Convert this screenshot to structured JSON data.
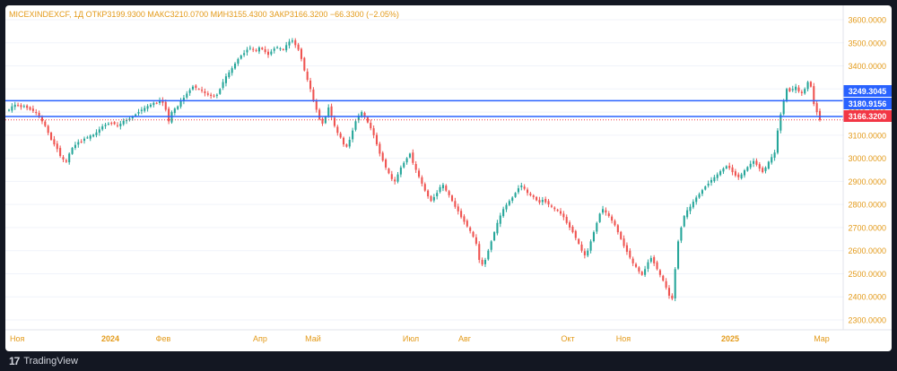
{
  "header": {
    "symbol": "MICEXINDEXCF, 1Д",
    "o_label": "ОТКР",
    "o_val": "3199.9300",
    "h_label": "МАКС",
    "h_val": "3210.0700",
    "l_label": "МИН",
    "l_val": "3155.4300",
    "c_label": "ЗАКР",
    "c_val": "3166.3200",
    "change": "−66.3300 (−2.05%)"
  },
  "footer": {
    "brand": "TradingView"
  },
  "colors": {
    "up": "#26a69a",
    "down": "#ef5350",
    "level": "#2962ff",
    "close_tag": "#f23645",
    "header_text": "#e39a19",
    "axis_text": "#e39a19"
  },
  "chart_data": {
    "type": "candlestick",
    "y_axis": {
      "min": 2300,
      "max": 3600,
      "ticks": [
        "3600.0000",
        "3500.0000",
        "3400.0000",
        "3300.0000",
        "3200.0000",
        "3100.0000",
        "3000.0000",
        "2900.0000",
        "2800.0000",
        "2700.0000",
        "2600.0000",
        "2500.0000",
        "2400.0000",
        "2300.0000"
      ]
    },
    "x_ticks": [
      "Ноя",
      "2024",
      "Фев",
      "Апр",
      "Май",
      "Июл",
      "Авг",
      "Окт",
      "Ноя",
      "2025",
      "Мар"
    ],
    "price_lines": [
      {
        "label": "3249.3045",
        "value": 3249.3045,
        "style": "solid"
      },
      {
        "label": "3180.9156",
        "value": 3180.9156,
        "style": "solid"
      },
      {
        "label": "3166.3200",
        "value": 3166.32,
        "style": "dotted"
      }
    ],
    "close_series": [
      3210,
      3225,
      3232,
      3230,
      3222,
      3226,
      3218,
      3210,
      3205,
      3200,
      3180,
      3160,
      3140,
      3110,
      3080,
      3060,
      3040,
      3010,
      2995,
      2985,
      3020,
      3045,
      3058,
      3070,
      3072,
      3085,
      3090,
      3098,
      3102,
      3112,
      3125,
      3138,
      3145,
      3150,
      3152,
      3148,
      3142,
      3150,
      3162,
      3165,
      3172,
      3180,
      3190,
      3200,
      3210,
      3218,
      3226,
      3232,
      3240,
      3238,
      3250,
      3240,
      3210,
      3160,
      3200,
      3215,
      3225,
      3248,
      3262,
      3280,
      3295,
      3310,
      3305,
      3300,
      3292,
      3282,
      3275,
      3270,
      3268,
      3275,
      3300,
      3330,
      3355,
      3372,
      3390,
      3410,
      3430,
      3445,
      3455,
      3470,
      3478,
      3472,
      3465,
      3480,
      3472,
      3460,
      3448,
      3462,
      3475,
      3480,
      3476,
      3470,
      3490,
      3505,
      3510,
      3490,
      3470,
      3430,
      3380,
      3340,
      3300,
      3250,
      3210,
      3170,
      3150,
      3180,
      3220,
      3180,
      3140,
      3110,
      3090,
      3060,
      3050,
      3080,
      3120,
      3160,
      3185,
      3200,
      3180,
      3155,
      3130,
      3100,
      3060,
      3020,
      2990,
      2960,
      2935,
      2910,
      2900,
      2930,
      2960,
      2980,
      3000,
      3020,
      2980,
      2950,
      2920,
      2890,
      2860,
      2835,
      2815,
      2832,
      2850,
      2875,
      2885,
      2860,
      2840,
      2815,
      2790,
      2770,
      2745,
      2725,
      2705,
      2685,
      2660,
      2630,
      2560,
      2540,
      2560,
      2600,
      2640,
      2680,
      2720,
      2752,
      2780,
      2798,
      2815,
      2830,
      2850,
      2870,
      2882,
      2868,
      2850,
      2840,
      2832,
      2818,
      2808,
      2820,
      2810,
      2800,
      2790,
      2780,
      2772,
      2760,
      2745,
      2720,
      2700,
      2680,
      2655,
      2630,
      2600,
      2580,
      2600,
      2640,
      2680,
      2720,
      2760,
      2780,
      2765,
      2750,
      2730,
      2710,
      2680,
      2650,
      2620,
      2595,
      2570,
      2545,
      2530,
      2510,
      2495,
      2520,
      2550,
      2568,
      2545,
      2520,
      2495,
      2470,
      2440,
      2405,
      2392,
      2520,
      2640,
      2700,
      2750,
      2775,
      2790,
      2812,
      2830,
      2845,
      2862,
      2878,
      2890,
      2906,
      2918,
      2930,
      2944,
      2956,
      2966,
      2958,
      2940,
      2925,
      2918,
      2930,
      2948,
      2962,
      2976,
      2988,
      2972,
      2955,
      2940,
      2960,
      2985,
      3005,
      3025,
      3120,
      3190,
      3250,
      3300,
      3290,
      3300,
      3310,
      3290,
      3282,
      3300,
      3330,
      3310,
      3235,
      3200,
      3166.32
    ]
  }
}
